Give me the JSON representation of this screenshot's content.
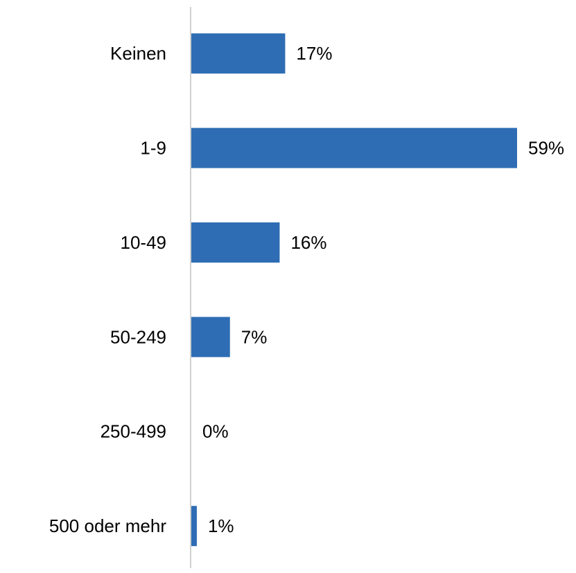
{
  "chart_data": {
    "type": "barh",
    "categories": [
      "Keinen",
      "1-9",
      "10-49",
      "50-249",
      "250-499",
      "500 oder mehr"
    ],
    "values": [
      17,
      59,
      16,
      7,
      0,
      1
    ],
    "value_labels": [
      "17%",
      "59%",
      "16%",
      "7%",
      "0%",
      "1%"
    ],
    "color": "#2e6db4"
  }
}
